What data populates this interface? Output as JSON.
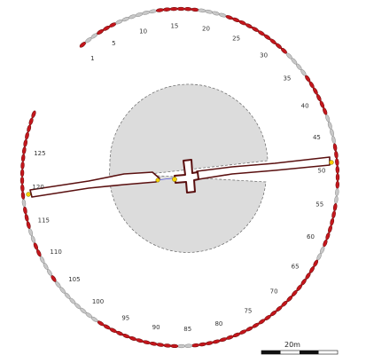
{
  "diagram": {
    "ring_labels": [
      {
        "text": "1"
      },
      {
        "text": "5"
      },
      {
        "text": "10"
      },
      {
        "text": "15"
      },
      {
        "text": "20"
      },
      {
        "text": "25"
      },
      {
        "text": "30"
      },
      {
        "text": "35"
      },
      {
        "text": "40"
      },
      {
        "text": "45"
      },
      {
        "text": "50"
      },
      {
        "text": "55"
      },
      {
        "text": "60"
      },
      {
        "text": "65"
      },
      {
        "text": "70"
      },
      {
        "text": "75"
      },
      {
        "text": "80"
      },
      {
        "text": "85"
      },
      {
        "text": "90"
      },
      {
        "text": "95"
      },
      {
        "text": "100"
      },
      {
        "text": "105"
      },
      {
        "text": "110"
      },
      {
        "text": "115"
      },
      {
        "text": "120"
      },
      {
        "text": "125"
      }
    ],
    "scale_bar": {
      "label": "20m",
      "segments": 4
    },
    "colors": {
      "stone_red": "#c4161c",
      "stone_grey": "#c8c8c8",
      "outline": "#5a1010",
      "mound_fill": "#dcdcdc",
      "mound_edge": "#666666",
      "sightline": "#3b3bd6",
      "marker": "#f5d000"
    }
  }
}
